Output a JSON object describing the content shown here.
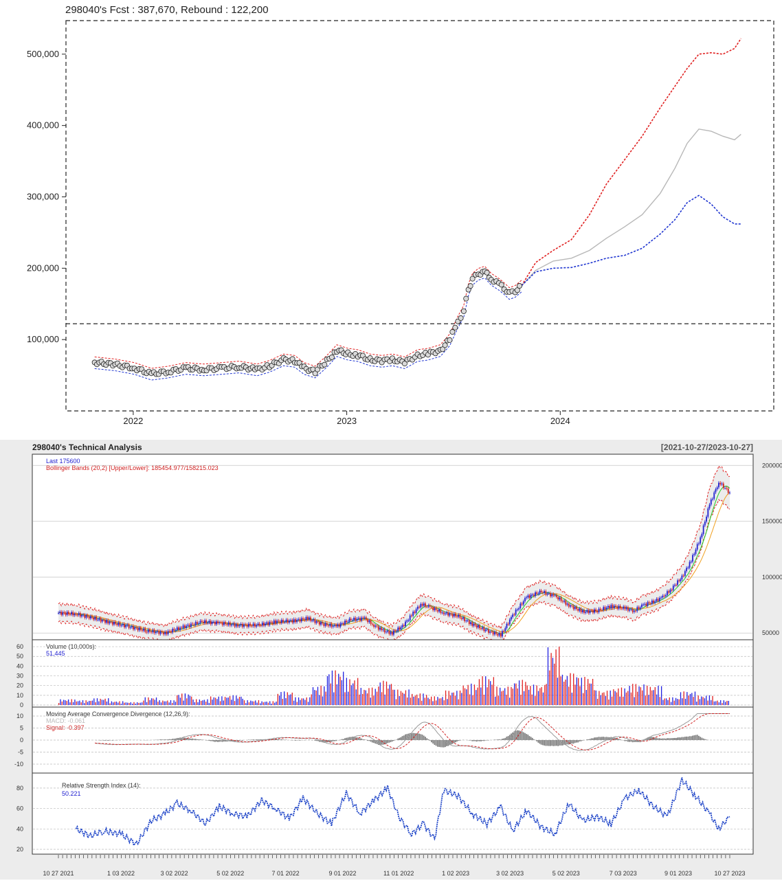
{
  "chart_data": [
    {
      "type": "line",
      "title": "298040's Fcst : 387,670, Rebound : 122,200",
      "y_ticks": [
        100000,
        200000,
        300000,
        400000,
        500000
      ],
      "y_tick_labels": [
        "100,000",
        "200,000",
        "300,000",
        "400,000",
        "500,000"
      ],
      "x_tick_labels": [
        "2022",
        "2023",
        "2024"
      ],
      "x_tick_dates": [
        "2022-01-01",
        "2023-01-01",
        "2024-01-01"
      ],
      "x_range": [
        "2021-09-08",
        "2024-12-31"
      ],
      "y_range": [
        0,
        547000
      ],
      "rebound_level": 122200,
      "grid": false,
      "series": [
        {
          "role": "history",
          "x": [
            "2021-10-27",
            "2021-12-01",
            "2022-01-03",
            "2022-02-01",
            "2022-03-02",
            "2022-04-01",
            "2022-05-02",
            "2022-06-01",
            "2022-07-01",
            "2022-08-01",
            "2022-08-22",
            "2022-09-15",
            "2022-10-04",
            "2022-10-20",
            "2022-11-08",
            "2022-11-28",
            "2022-12-15",
            "2023-01-03",
            "2023-01-20",
            "2023-02-10",
            "2023-03-02",
            "2023-03-20",
            "2023-04-10",
            "2023-05-02",
            "2023-05-20",
            "2023-06-10",
            "2023-06-26",
            "2023-07-10",
            "2023-07-20",
            "2023-07-28",
            "2023-08-04",
            "2023-08-14",
            "2023-08-25",
            "2023-09-05",
            "2023-09-18",
            "2023-09-27",
            "2023-10-06",
            "2023-10-16",
            "2023-10-27"
          ],
          "y": [
            68000,
            65000,
            60000,
            52000,
            55000,
            60000,
            58000,
            60000,
            62000,
            58000,
            63000,
            72000,
            70000,
            60000,
            55000,
            70000,
            85000,
            80000,
            78000,
            72000,
            70000,
            72000,
            68000,
            78000,
            80000,
            85000,
            100000,
            125000,
            140000,
            170000,
            185000,
            192000,
            195000,
            185000,
            178000,
            172000,
            165000,
            168000,
            175600
          ]
        },
        {
          "role": "forecast",
          "color": "#b8b8b8",
          "x": [
            "2023-10-27",
            "2023-11-20",
            "2023-12-20",
            "2024-01-20",
            "2024-02-20",
            "2024-03-20",
            "2024-04-20",
            "2024-05-20",
            "2024-06-20",
            "2024-07-15",
            "2024-08-05",
            "2024-08-25",
            "2024-09-15",
            "2024-10-05",
            "2024-10-25",
            "2024-11-05"
          ],
          "y": [
            175600,
            197000,
            210000,
            214000,
            225000,
            242000,
            258000,
            275000,
            305000,
            340000,
            375000,
            395000,
            392000,
            385000,
            380000,
            387670
          ]
        },
        {
          "role": "upper",
          "color": "#e02020",
          "x": [
            "2023-10-27",
            "2023-11-20",
            "2023-12-20",
            "2024-01-20",
            "2024-02-20",
            "2024-03-20",
            "2024-04-20",
            "2024-05-20",
            "2024-06-20",
            "2024-07-15",
            "2024-08-05",
            "2024-08-25",
            "2024-09-15",
            "2024-10-05",
            "2024-10-25",
            "2024-11-05"
          ],
          "y": [
            175600,
            208000,
            225000,
            240000,
            275000,
            318000,
            352000,
            385000,
            425000,
            455000,
            480000,
            500000,
            502000,
            500000,
            508000,
            522000
          ]
        },
        {
          "role": "lower",
          "color": "#1f35d0",
          "x": [
            "2023-10-27",
            "2023-11-20",
            "2023-12-20",
            "2024-01-20",
            "2024-02-20",
            "2024-03-20",
            "2024-04-20",
            "2024-05-20",
            "2024-06-20",
            "2024-07-15",
            "2024-08-05",
            "2024-08-25",
            "2024-09-15",
            "2024-10-05",
            "2024-10-25",
            "2024-11-05"
          ],
          "y": [
            175600,
            195000,
            200000,
            201000,
            207000,
            214000,
            218000,
            228000,
            248000,
            268000,
            292000,
            302000,
            290000,
            272000,
            262000,
            262000
          ]
        }
      ]
    },
    {
      "type": "line",
      "title": "298040's Technical Analysis",
      "date_range_label": "[2021-10-27/2023-10-27]",
      "last_label": "Last 175600",
      "bollinger_label": "Bollinger Bands (20,2) [Upper/Lower]: 185454.977/158215.023",
      "price_y_ticks": [
        50000,
        100000,
        150000,
        200000
      ],
      "price_y_tick_labels": [
        "50000",
        "100000",
        "150000",
        "200000"
      ],
      "price_range": [
        44000,
        210000
      ],
      "x_tick_labels": [
        "10 27 2021",
        "1 03 2022",
        "3 02 2022",
        "5 02 2022",
        "7 01 2022",
        "9 01 2022",
        "11 01 2022",
        "1 02 2023",
        "3 02 2023",
        "5 02 2023",
        "7 03 2023",
        "9 01 2023",
        "10 27 2023"
      ],
      "x_tick_dates": [
        "2021-10-27",
        "2022-01-03",
        "2022-03-02",
        "2022-05-02",
        "2022-07-01",
        "2022-09-01",
        "2022-11-01",
        "2023-01-02",
        "2023-03-02",
        "2023-05-02",
        "2023-07-03",
        "2023-09-01",
        "2023-10-27"
      ],
      "x_range": [
        "2021-10-27",
        "2023-10-27"
      ],
      "price": {
        "x": [
          "2021-10-27",
          "2021-11-15",
          "2021-12-01",
          "2021-12-20",
          "2022-01-10",
          "2022-01-31",
          "2022-02-20",
          "2022-03-10",
          "2022-04-01",
          "2022-04-20",
          "2022-05-10",
          "2022-06-01",
          "2022-06-20",
          "2022-07-10",
          "2022-07-25",
          "2022-08-10",
          "2022-08-25",
          "2022-09-10",
          "2022-09-25",
          "2022-10-05",
          "2022-10-15",
          "2022-10-25",
          "2022-11-05",
          "2022-11-15",
          "2022-11-25",
          "2022-12-05",
          "2022-12-20",
          "2023-01-05",
          "2023-01-20",
          "2023-02-05",
          "2023-02-20",
          "2023-03-05",
          "2023-03-20",
          "2023-04-05",
          "2023-04-20",
          "2023-05-05",
          "2023-05-20",
          "2023-06-05",
          "2023-06-20",
          "2023-07-05",
          "2023-07-15",
          "2023-07-25",
          "2023-08-05",
          "2023-08-15",
          "2023-08-25",
          "2023-09-05",
          "2023-09-15",
          "2023-09-25",
          "2023-10-05",
          "2023-10-15",
          "2023-10-27"
        ],
        "y": [
          68000,
          67000,
          64000,
          60000,
          56000,
          52000,
          50000,
          55000,
          60000,
          59000,
          57000,
          57000,
          60000,
          61000,
          63000,
          58000,
          56000,
          62000,
          63000,
          57000,
          52000,
          50000,
          56000,
          66000,
          76000,
          73000,
          68000,
          65000,
          58000,
          52000,
          48000,
          66000,
          82000,
          87000,
          83000,
          75000,
          69000,
          70000,
          74000,
          72000,
          70000,
          75000,
          78000,
          82000,
          90000,
          100000,
          115000,
          135000,
          165000,
          185000,
          175600
        ],
        "ma_fast_color": "#22cc22",
        "ma_slow_color": "#f0a020",
        "band_color": "#e02020"
      },
      "volume": {
        "label": "Volume (10,000s):",
        "value_label": "51,445",
        "y_ticks": [
          0,
          10,
          20,
          30,
          40,
          50,
          60
        ],
        "y_range": [
          0,
          65
        ],
        "bars_sample": [
          6,
          5,
          7,
          4,
          3,
          8,
          5,
          12,
          6,
          9,
          10,
          5,
          4,
          14,
          8,
          20,
          36,
          28,
          18,
          25,
          16,
          12,
          9,
          15,
          22,
          30,
          19,
          26,
          21,
          60,
          33,
          29,
          15,
          18,
          22,
          20,
          8,
          14,
          10,
          5
        ],
        "up_color": "#2020e0",
        "down_color": "#e02020"
      },
      "macd": {
        "label": "Moving Average Convergence Divergence (12,26,9):",
        "macd_label": "MACD: -0.061",
        "signal_label": "Signal: -0.397",
        "y_ticks": [
          -10,
          -5,
          0,
          5,
          10
        ],
        "y_range": [
          -12,
          12
        ]
      },
      "rsi": {
        "label": "Relative Strength Index (14):",
        "value_label": "50.221",
        "y_ticks": [
          20,
          40,
          60,
          80
        ],
        "y_range": [
          18,
          92
        ],
        "x": [
          "2021-11-15",
          "2021-12-01",
          "2021-12-15",
          "2022-01-03",
          "2022-01-20",
          "2022-02-05",
          "2022-02-20",
          "2022-03-05",
          "2022-03-20",
          "2022-04-05",
          "2022-04-20",
          "2022-05-05",
          "2022-05-20",
          "2022-06-05",
          "2022-06-20",
          "2022-07-05",
          "2022-07-20",
          "2022-08-05",
          "2022-08-20",
          "2022-09-05",
          "2022-09-20",
          "2022-10-05",
          "2022-10-20",
          "2022-11-01",
          "2022-11-15",
          "2022-11-28",
          "2022-12-10",
          "2022-12-20",
          "2023-01-05",
          "2023-01-20",
          "2023-02-05",
          "2023-02-20",
          "2023-03-05",
          "2023-03-20",
          "2023-04-05",
          "2023-04-20",
          "2023-05-05",
          "2023-05-20",
          "2023-06-05",
          "2023-06-20",
          "2023-07-05",
          "2023-07-20",
          "2023-08-05",
          "2023-08-20",
          "2023-09-05",
          "2023-09-20",
          "2023-10-05",
          "2023-10-15",
          "2023-10-27"
        ],
        "y": [
          40,
          33,
          38,
          35,
          25,
          48,
          55,
          65,
          58,
          45,
          62,
          55,
          52,
          68,
          60,
          50,
          70,
          55,
          45,
          75,
          55,
          68,
          80,
          52,
          35,
          45,
          30,
          78,
          72,
          55,
          45,
          62,
          38,
          58,
          42,
          35,
          65,
          48,
          52,
          45,
          70,
          78,
          62,
          52,
          88,
          72,
          55,
          40,
          52
        ]
      }
    }
  ]
}
